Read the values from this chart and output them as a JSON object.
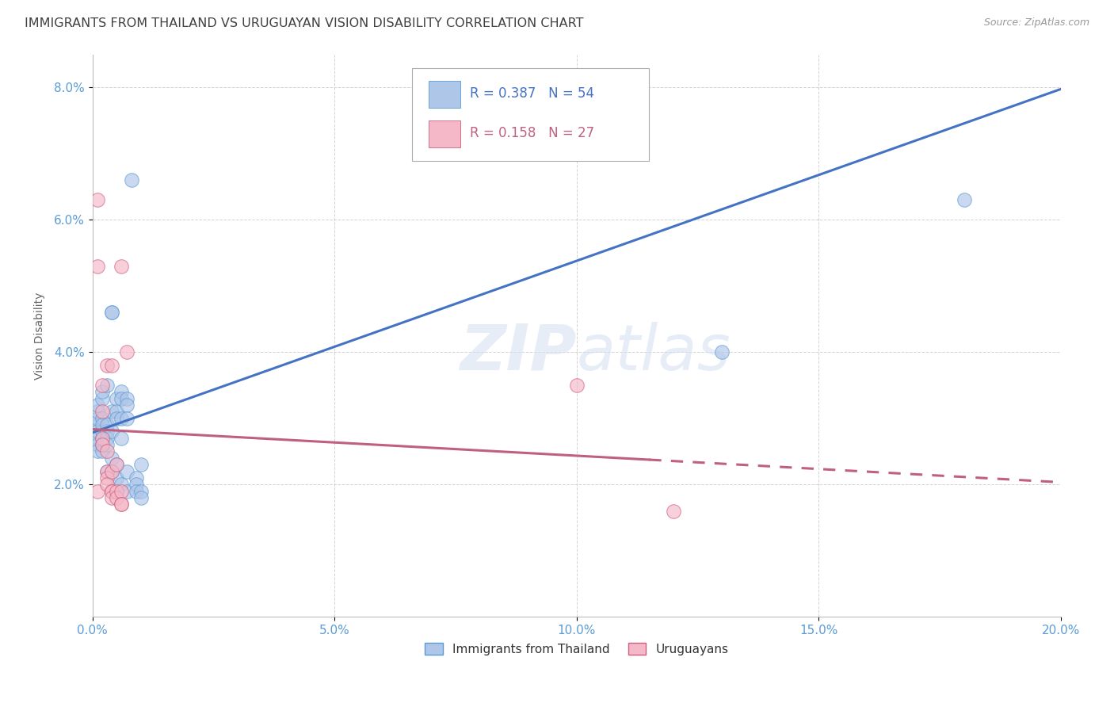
{
  "title": "IMMIGRANTS FROM THAILAND VS URUGUAYAN VISION DISABILITY CORRELATION CHART",
  "source": "Source: ZipAtlas.com",
  "ylabel": "Vision Disability",
  "watermark": "ZIPatlas",
  "r_blue": 0.387,
  "n_blue": 54,
  "r_pink": 0.158,
  "n_pink": 27,
  "blue_fill": "#aec6e8",
  "blue_edge": "#5b9bd5",
  "blue_line": "#4472c4",
  "pink_fill": "#f4b8c8",
  "pink_edge": "#d06080",
  "pink_line": "#c06080",
  "blue_scatter": [
    [
      0.001,
      0.027
    ],
    [
      0.001,
      0.029
    ],
    [
      0.001,
      0.028
    ],
    [
      0.001,
      0.03
    ],
    [
      0.001,
      0.026
    ],
    [
      0.001,
      0.031
    ],
    [
      0.001,
      0.025
    ],
    [
      0.001,
      0.032
    ],
    [
      0.002,
      0.028
    ],
    [
      0.002,
      0.027
    ],
    [
      0.002,
      0.03
    ],
    [
      0.002,
      0.029
    ],
    [
      0.002,
      0.033
    ],
    [
      0.002,
      0.026
    ],
    [
      0.002,
      0.025
    ],
    [
      0.002,
      0.034
    ],
    [
      0.003,
      0.028
    ],
    [
      0.003,
      0.035
    ],
    [
      0.003,
      0.027
    ],
    [
      0.003,
      0.029
    ],
    [
      0.003,
      0.026
    ],
    [
      0.003,
      0.022
    ],
    [
      0.004,
      0.046
    ],
    [
      0.004,
      0.046
    ],
    [
      0.004,
      0.031
    ],
    [
      0.004,
      0.028
    ],
    [
      0.004,
      0.024
    ],
    [
      0.004,
      0.022
    ],
    [
      0.005,
      0.033
    ],
    [
      0.005,
      0.031
    ],
    [
      0.005,
      0.03
    ],
    [
      0.005,
      0.023
    ],
    [
      0.005,
      0.021
    ],
    [
      0.006,
      0.034
    ],
    [
      0.006,
      0.033
    ],
    [
      0.006,
      0.03
    ],
    [
      0.006,
      0.027
    ],
    [
      0.006,
      0.02
    ],
    [
      0.007,
      0.033
    ],
    [
      0.007,
      0.032
    ],
    [
      0.007,
      0.03
    ],
    [
      0.007,
      0.022
    ],
    [
      0.007,
      0.019
    ],
    [
      0.008,
      0.066
    ],
    [
      0.009,
      0.021
    ],
    [
      0.009,
      0.02
    ],
    [
      0.009,
      0.019
    ],
    [
      0.01,
      0.023
    ],
    [
      0.01,
      0.019
    ],
    [
      0.01,
      0.018
    ],
    [
      0.095,
      0.08
    ],
    [
      0.097,
      0.08
    ],
    [
      0.13,
      0.04
    ],
    [
      0.18,
      0.063
    ]
  ],
  "pink_scatter": [
    [
      0.001,
      0.019
    ],
    [
      0.001,
      0.053
    ],
    [
      0.001,
      0.063
    ],
    [
      0.002,
      0.027
    ],
    [
      0.002,
      0.031
    ],
    [
      0.002,
      0.035
    ],
    [
      0.002,
      0.026
    ],
    [
      0.003,
      0.025
    ],
    [
      0.003,
      0.022
    ],
    [
      0.003,
      0.038
    ],
    [
      0.003,
      0.021
    ],
    [
      0.003,
      0.02
    ],
    [
      0.004,
      0.022
    ],
    [
      0.004,
      0.019
    ],
    [
      0.004,
      0.019
    ],
    [
      0.004,
      0.018
    ],
    [
      0.004,
      0.038
    ],
    [
      0.005,
      0.023
    ],
    [
      0.005,
      0.019
    ],
    [
      0.005,
      0.018
    ],
    [
      0.006,
      0.019
    ],
    [
      0.006,
      0.053
    ],
    [
      0.006,
      0.017
    ],
    [
      0.006,
      0.017
    ],
    [
      0.007,
      0.04
    ],
    [
      0.1,
      0.035
    ],
    [
      0.12,
      0.016
    ]
  ],
  "xlim": [
    0.0,
    0.2
  ],
  "ylim": [
    0.0,
    0.085
  ],
  "xtick_vals": [
    0.0,
    0.05,
    0.1,
    0.15,
    0.2
  ],
  "xtick_labels": [
    "0.0%",
    "5.0%",
    "10.0%",
    "15.0%",
    "20.0%"
  ],
  "ytick_vals": [
    0.02,
    0.04,
    0.06,
    0.08
  ],
  "ytick_labels": [
    "2.0%",
    "4.0%",
    "6.0%",
    "8.0%"
  ],
  "legend_label_blue": "Immigrants from Thailand",
  "legend_label_pink": "Uruguayans",
  "background_color": "#ffffff",
  "grid_color": "#c8c8c8",
  "tick_color": "#5b9bd5",
  "title_color": "#404040",
  "title_fontsize": 11.5,
  "tick_fontsize": 11,
  "ylabel_fontsize": 10
}
